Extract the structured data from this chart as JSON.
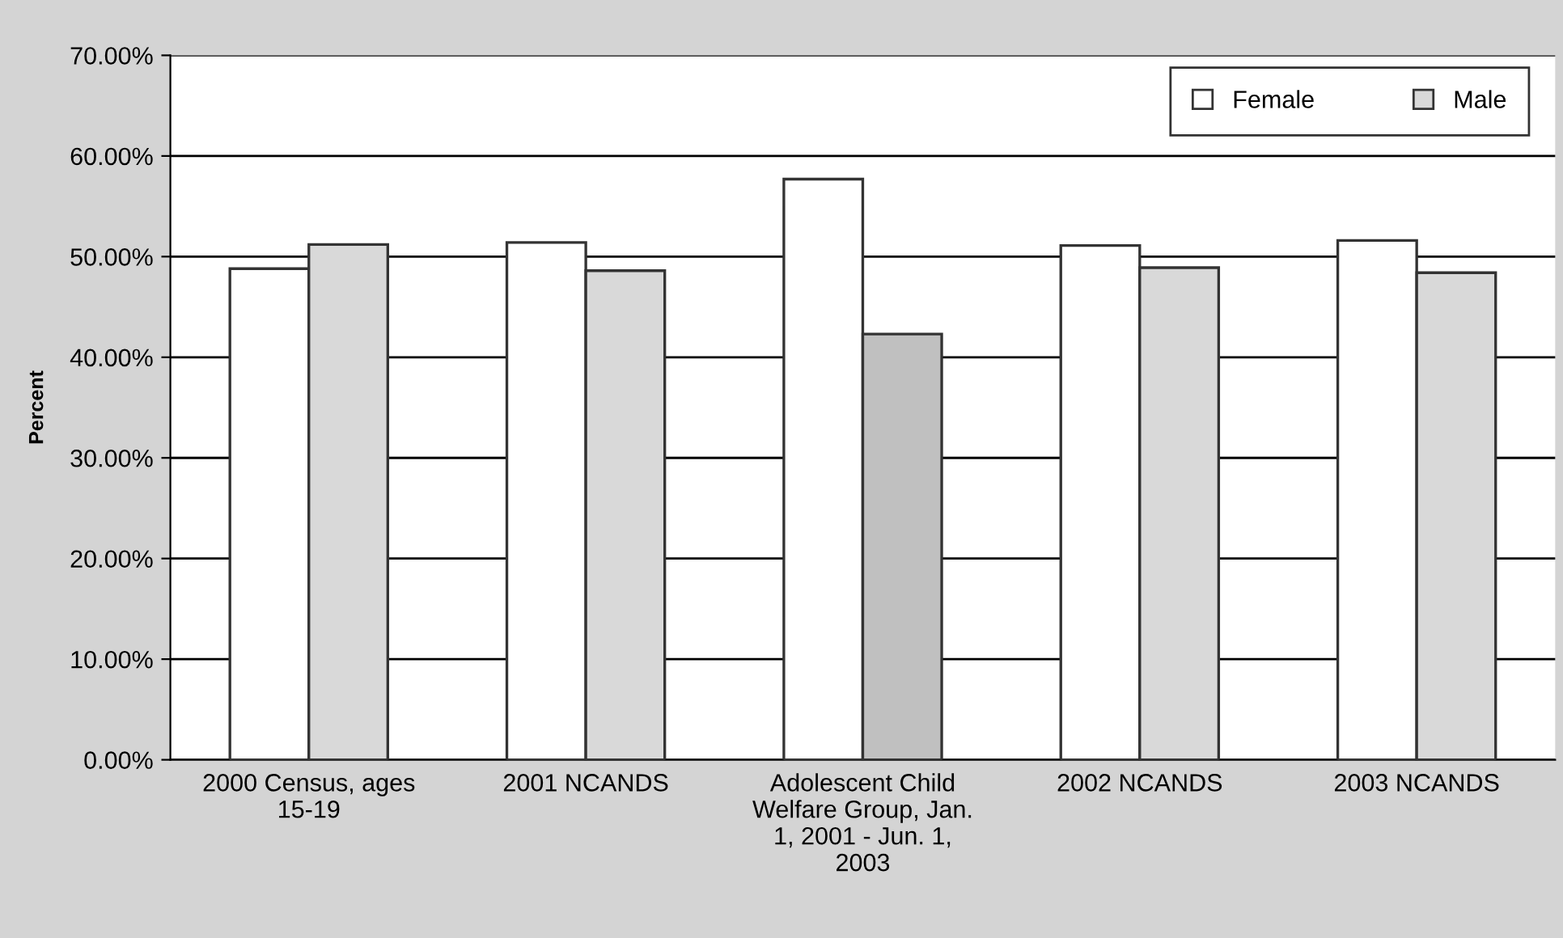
{
  "chart_data": {
    "type": "bar",
    "ylabel": "Percent",
    "categories": [
      "2000 Census, ages 15-19",
      "2001 NCANDS",
      "Adolescent Child Welfare Group, Jan. 1, 2001 - Jun. 1, 2003",
      "2002 NCANDS",
      "2003 NCANDS"
    ],
    "series": [
      {
        "name": "Female",
        "color": "#ffffff",
        "values": [
          48.8,
          51.4,
          57.7,
          51.1,
          51.6
        ]
      },
      {
        "name": "Male",
        "color": "#d9d9d9",
        "colors": [
          "#d9d9d9",
          "#d9d9d9",
          "#c0c0c0",
          "#d9d9d9",
          "#d9d9d9"
        ],
        "values": [
          51.2,
          48.6,
          42.3,
          48.9,
          48.4
        ]
      }
    ],
    "ylim": [
      0,
      70
    ],
    "yticks": [
      {
        "value": 0,
        "label": "0.00%"
      },
      {
        "value": 10,
        "label": "10.00%"
      },
      {
        "value": 20,
        "label": "20.00%"
      },
      {
        "value": 30,
        "label": "30.00%"
      },
      {
        "value": 40,
        "label": "40.00%"
      },
      {
        "value": 50,
        "label": "50.00%"
      },
      {
        "value": 60,
        "label": "60.00%"
      },
      {
        "value": 70,
        "label": "70.00%"
      }
    ],
    "grid": "y",
    "legend": "top right"
  }
}
